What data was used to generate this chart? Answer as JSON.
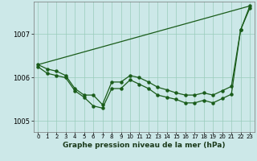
{
  "background_color": "#cce8e8",
  "grid_color": "#99ccbb",
  "line_color": "#1a5c1a",
  "xlabel": "Graphe pression niveau de la mer (hPa)",
  "ylim": [
    1004.75,
    1007.75
  ],
  "xlim": [
    -0.5,
    23.5
  ],
  "yticks": [
    1005,
    1006,
    1007
  ],
  "xticks": [
    0,
    1,
    2,
    3,
    4,
    5,
    6,
    7,
    8,
    9,
    10,
    11,
    12,
    13,
    14,
    15,
    16,
    17,
    18,
    19,
    20,
    21,
    22,
    23
  ],
  "series1_x": [
    0,
    23
  ],
  "series1_y": [
    1006.3,
    1007.65
  ],
  "series2_x": [
    0,
    1,
    2,
    3,
    4,
    5,
    6,
    7,
    8,
    9,
    10,
    11,
    12,
    13,
    14,
    15,
    16,
    17,
    18,
    19,
    20,
    21,
    22,
    23
  ],
  "series2_y": [
    1006.25,
    1006.1,
    1006.05,
    1006.0,
    1005.7,
    1005.55,
    1005.35,
    1005.3,
    1005.75,
    1005.75,
    1005.95,
    1005.85,
    1005.75,
    1005.6,
    1005.55,
    1005.5,
    1005.42,
    1005.42,
    1005.48,
    1005.42,
    1005.52,
    1005.62,
    1007.1,
    1007.65
  ],
  "series3_x": [
    0,
    1,
    2,
    3,
    4,
    5,
    6,
    7,
    8,
    9,
    10,
    11,
    12,
    13,
    14,
    15,
    16,
    17,
    18,
    19,
    20,
    21,
    22,
    23
  ],
  "series3_y": [
    1006.3,
    1006.2,
    1006.15,
    1006.05,
    1005.75,
    1005.6,
    1005.6,
    1005.38,
    1005.9,
    1005.9,
    1006.05,
    1006.0,
    1005.9,
    1005.78,
    1005.72,
    1005.65,
    1005.6,
    1005.6,
    1005.65,
    1005.6,
    1005.7,
    1005.8,
    1007.1,
    1007.6
  ]
}
